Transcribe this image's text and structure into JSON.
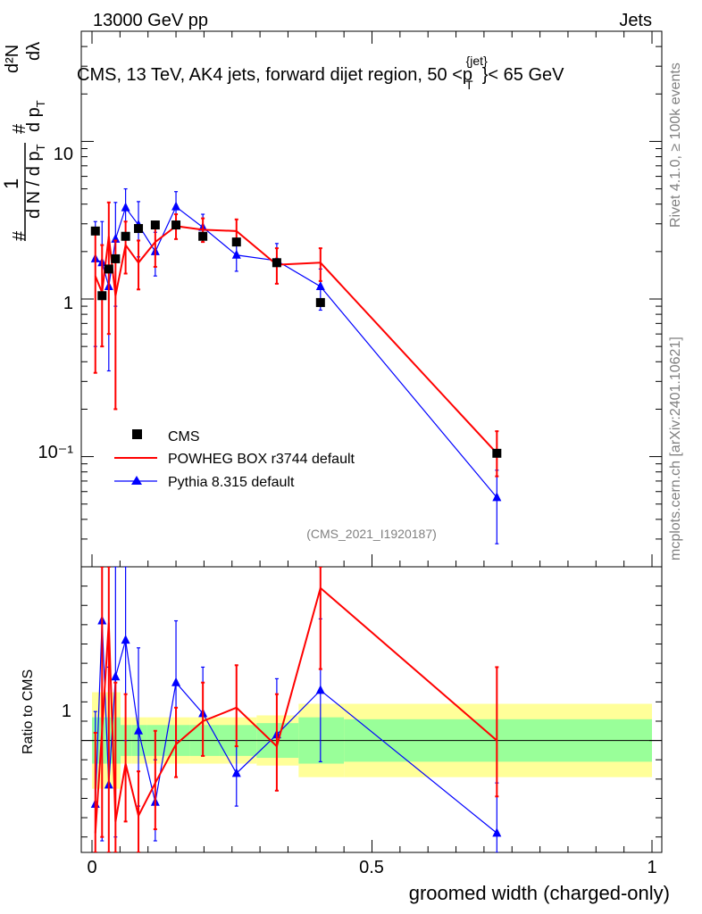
{
  "header": {
    "left": "13000 GeV pp",
    "right": "Jets",
    "title": "CMS, 13 TeV, AK4 jets, forward dijet region, 50 <p",
    "title_sup": "{jet}",
    "title_sub": "T",
    "title_end": "}< 65 GeV",
    "rivet": "Rivet 4.1.0, ≥ 100k events",
    "mcplots": "mcplots.cern.ch [arXiv:2401.10621]",
    "analysis": "(CMS_2021_I1920187)"
  },
  "axes": {
    "ylabel_main": {
      "hash1": "#",
      "num": "1",
      "den": "d N / d p",
      "den_sub": "T",
      "mid_hash": "#",
      "mid": "d p",
      "mid_sub": "T",
      "top": "d²N",
      "top_den": "dλ"
    },
    "ylabel_ratio": "Ratio to CMS",
    "xlabel": "groomed width (charged-only)",
    "xticks": [
      "0",
      "0.5",
      "1"
    ],
    "yticks_main": [
      "10",
      "1",
      "10⁻¹"
    ],
    "ytick_ratio": "1"
  },
  "legend": {
    "cms": "CMS",
    "powheg": "POWHEG BOX r3744 default",
    "pythia": "Pythia 8.315 default"
  },
  "colors": {
    "powheg": "#ff0000",
    "pythia": "#0000ff",
    "data": "#000000",
    "band_outer": "#ffff99",
    "band_inner": "#99ff99"
  },
  "chart_data": {
    "type": "line",
    "x_range": [
      0,
      1
    ],
    "y_range_main": [
      0.02,
      50
    ],
    "y_range_ratio": [
      0.42,
      1.9
    ],
    "yscale_main": "log",
    "x": [
      0.006,
      0.018,
      0.03,
      0.042,
      0.06,
      0.083,
      0.113,
      0.15,
      0.198,
      0.258,
      0.33,
      0.408,
      0.723
    ],
    "cms": {
      "values": [
        2.7,
        1.05,
        1.55,
        1.8,
        2.5,
        2.8,
        2.95,
        2.95,
        2.5,
        2.3,
        1.7,
        0.95,
        0.105
      ],
      "band_inner_rel": [
        0.12,
        0.12,
        0.12,
        0.12,
        0.08,
        0.08,
        0.08,
        0.08,
        0.08,
        0.08,
        0.09,
        0.12,
        0.11
      ],
      "band_outer_rel": [
        0.25,
        0.25,
        0.25,
        0.25,
        0.12,
        0.12,
        0.12,
        0.12,
        0.12,
        0.12,
        0.13,
        0.19,
        0.19
      ]
    },
    "series": [
      {
        "name": "POWHEG BOX r3744 default",
        "values": [
          1.4,
          1.1,
          2.5,
          1.05,
          2.2,
          1.7,
          2.3,
          2.9,
          2.75,
          2.7,
          1.65,
          1.7,
          0.105
        ],
        "err_low": [
          1.06,
          0.6,
          1.9,
          0.85,
          0.75,
          0.55,
          0.7,
          0.5,
          0.45,
          0.45,
          0.4,
          0.4,
          0.03
        ],
        "err_high": [
          1.4,
          1.1,
          1.6,
          1.3,
          0.9,
          0.65,
          0.8,
          0.55,
          0.5,
          0.5,
          0.45,
          0.4,
          0.04
        ]
      },
      {
        "name": "Pythia 8.315 default",
        "values": [
          1.8,
          1.7,
          1.2,
          2.4,
          3.8,
          2.95,
          2.0,
          3.85,
          2.85,
          1.9,
          1.75,
          1.2,
          0.055
        ],
        "err_low": [
          1.3,
          1.2,
          0.85,
          1.5,
          1.3,
          1.1,
          0.6,
          0.9,
          0.55,
          0.4,
          0.5,
          0.35,
          0.027
        ],
        "err_high": [
          1.3,
          1.4,
          0.95,
          1.7,
          1.2,
          1.2,
          0.65,
          0.95,
          0.6,
          0.4,
          0.5,
          0.35,
          0.027
        ]
      }
    ],
    "ratios": [
      {
        "name": "POWHEG BOX r3744 default",
        "values": [
          0.52,
          1.05,
          1.61,
          0.58,
          0.88,
          0.61,
          0.78,
          0.98,
          1.1,
          1.17,
          0.97,
          1.79,
          1.0
        ],
        "err_low": [
          0.39,
          0.55,
          1.22,
          0.47,
          0.3,
          0.2,
          0.24,
          0.17,
          0.18,
          0.2,
          0.23,
          0.42,
          0.29
        ],
        "err_high": [
          0.52,
          1.05,
          1.0,
          0.72,
          0.36,
          0.23,
          0.27,
          0.19,
          0.2,
          0.22,
          0.27,
          0.42,
          0.38
        ]
      },
      {
        "name": "Pythia 8.315 default",
        "values": [
          0.67,
          1.62,
          0.77,
          1.33,
          1.52,
          1.05,
          0.68,
          1.3,
          1.14,
          0.83,
          1.03,
          1.26,
          0.52
        ],
        "err_low": [
          0.48,
          1.14,
          0.55,
          0.83,
          0.52,
          0.39,
          0.2,
          0.3,
          0.22,
          0.17,
          0.29,
          0.37,
          0.26
        ],
        "err_high": [
          0.48,
          1.33,
          0.61,
          0.94,
          0.48,
          0.43,
          0.22,
          0.32,
          0.24,
          0.17,
          0.29,
          0.37,
          0.26
        ]
      }
    ]
  }
}
